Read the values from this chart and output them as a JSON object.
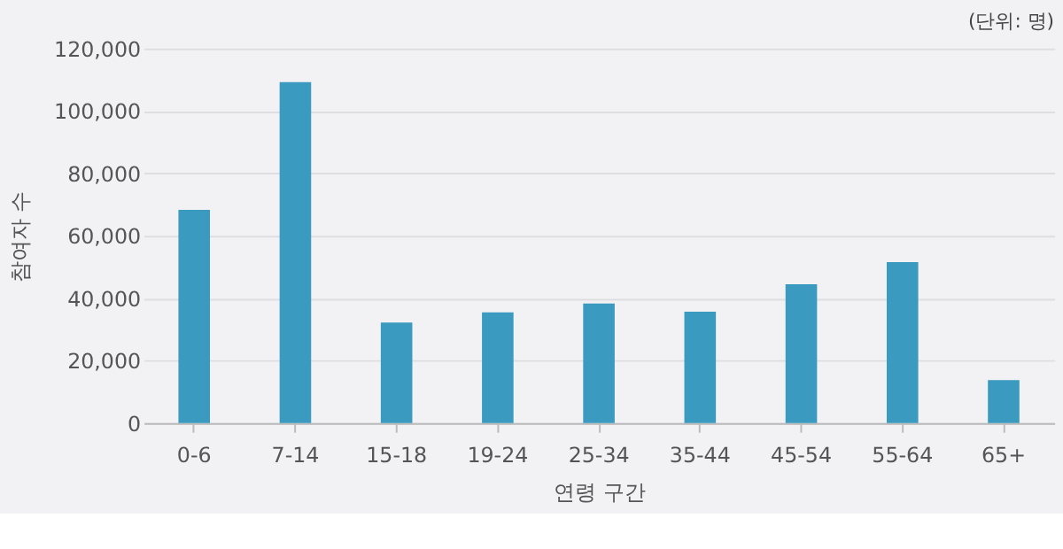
{
  "chart_data": {
    "type": "bar",
    "categories": [
      "0-6",
      "7-14",
      "15-18",
      "19-24",
      "25-34",
      "35-44",
      "45-54",
      "55-64",
      "65+"
    ],
    "values": [
      68300,
      109200,
      32200,
      35500,
      38300,
      35700,
      44500,
      51600,
      13800
    ],
    "color": "#3a9abf",
    "xlabel": "연령 구간",
    "ylabel": "참여자 수",
    "annotations": [
      "(단위: 명)"
    ],
    "ylim": [
      0,
      120000
    ],
    "yticks": [
      0,
      {
        "value": 20000,
        "label": "20,000"
      },
      {
        "value": 40000,
        "label": "40,000"
      },
      {
        "value": 60000,
        "label": "60,000"
      },
      {
        "value": 80000,
        "label": "80,000"
      },
      {
        "value": 100000,
        "label": "100,000"
      },
      {
        "value": 120000,
        "label": "120,000"
      }
    ],
    "grid": "y"
  }
}
